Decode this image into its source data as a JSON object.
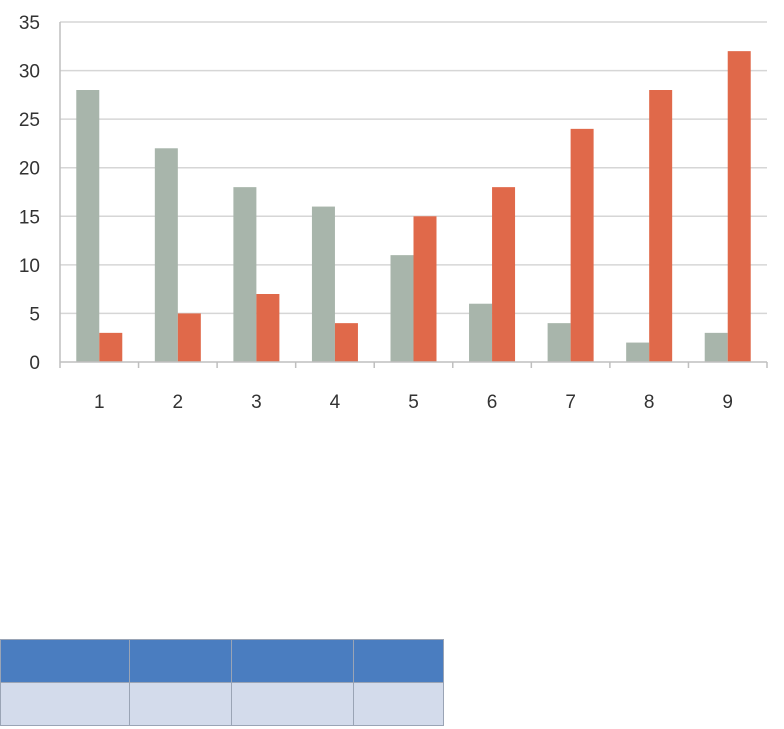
{
  "chart_data": {
    "type": "bar",
    "categories": [
      "1",
      "2",
      "3",
      "4",
      "5",
      "6",
      "7",
      "8",
      "9"
    ],
    "series": [
      {
        "values": [
          28,
          22,
          18,
          16,
          11,
          6,
          4,
          2,
          3
        ],
        "color": "#a8b5ab"
      },
      {
        "values": [
          3,
          5,
          7,
          4,
          15,
          18,
          24,
          28,
          32
        ],
        "color": "#e0694a"
      }
    ],
    "ylim": [
      0,
      35
    ],
    "yticks": [
      0,
      5,
      10,
      15,
      20,
      25,
      30,
      35
    ],
    "grid": true,
    "legend": "none"
  },
  "table": {
    "columns": 4,
    "header_cells": [
      "",
      "",
      "",
      ""
    ],
    "body_cells": [
      "",
      "",
      "",
      ""
    ]
  }
}
